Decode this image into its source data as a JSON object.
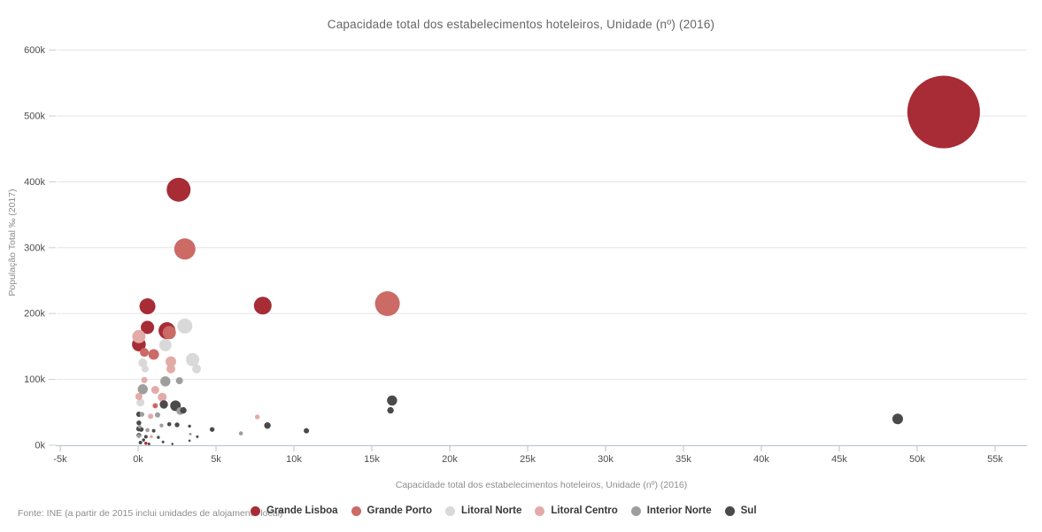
{
  "page": {
    "title": "Capacidade total dos estabelecimentos hoteleiros, Unidade (nº) (2016)"
  },
  "footer": {
    "source_note": "Fonte: INE (a partir de 2015 inclui unidades de alojamento local)"
  },
  "chart_data": {
    "type": "scatter",
    "title": "Capacidade total dos estabelecimentos hoteleiros, Unidade (nº) (2016)",
    "xlabel": "Capacidade total dos estabelecimentos hoteleiros, Unidade (nº) (2016)",
    "ylabel": "População Total ‰ (2017)",
    "xlim": [
      -5000,
      57000
    ],
    "ylim": [
      0,
      600000
    ],
    "grid": "horizontal-lines",
    "legend_position": "bottom",
    "x_ticks": [
      {
        "value": -5000,
        "label": "-5k"
      },
      {
        "value": 0,
        "label": "0k"
      },
      {
        "value": 5000,
        "label": "5k"
      },
      {
        "value": 10000,
        "label": "10k"
      },
      {
        "value": 15000,
        "label": "15k"
      },
      {
        "value": 20000,
        "label": "20k"
      },
      {
        "value": 25000,
        "label": "25k"
      },
      {
        "value": 30000,
        "label": "30k"
      },
      {
        "value": 35000,
        "label": "35k"
      },
      {
        "value": 40000,
        "label": "40k"
      },
      {
        "value": 45000,
        "label": "45k"
      },
      {
        "value": 50000,
        "label": "50k"
      },
      {
        "value": 55000,
        "label": "55k"
      }
    ],
    "y_ticks": [
      {
        "value": 0,
        "label": "0k"
      },
      {
        "value": 100000,
        "label": "100k"
      },
      {
        "value": 200000,
        "label": "200k"
      },
      {
        "value": 300000,
        "label": "300k"
      },
      {
        "value": 400000,
        "label": "400k"
      },
      {
        "value": 500000,
        "label": "500k"
      },
      {
        "value": 600000,
        "label": "600k"
      }
    ],
    "series": [
      {
        "name": "Grande Lisboa",
        "color": "#a72c35",
        "points": [
          {
            "x": 51700,
            "y": 506000,
            "r": 41
          },
          {
            "x": 2600,
            "y": 388000,
            "r": 13.5
          },
          {
            "x": 8000,
            "y": 212000,
            "r": 10
          },
          {
            "x": 600,
            "y": 211000,
            "r": 9
          },
          {
            "x": 600,
            "y": 179000,
            "r": 7.5
          },
          {
            "x": 1850,
            "y": 174000,
            "r": 9.5
          },
          {
            "x": 50,
            "y": 153000,
            "r": 7.8
          },
          {
            "x": 500,
            "y": 3000,
            "r": 1.8
          }
        ]
      },
      {
        "name": "Grande Porto",
        "color": "#cc6a66",
        "points": [
          {
            "x": 3000,
            "y": 298000,
            "r": 12
          },
          {
            "x": 16000,
            "y": 215000,
            "r": 14
          },
          {
            "x": 2000,
            "y": 171000,
            "r": 7.5
          },
          {
            "x": 1000,
            "y": 138000,
            "r": 6
          },
          {
            "x": 400,
            "y": 141000,
            "r": 5
          },
          {
            "x": 1100,
            "y": 60000,
            "r": 3
          }
        ]
      },
      {
        "name": "Litoral Norte",
        "color": "#d9d9d9",
        "points": [
          {
            "x": 3000,
            "y": 181000,
            "r": 8.5
          },
          {
            "x": 1750,
            "y": 152000,
            "r": 7
          },
          {
            "x": 3500,
            "y": 130000,
            "r": 7.5
          },
          {
            "x": 3750,
            "y": 116000,
            "r": 5
          },
          {
            "x": 450,
            "y": 116000,
            "r": 4
          },
          {
            "x": 300,
            "y": 125000,
            "r": 5
          },
          {
            "x": 150,
            "y": 65000,
            "r": 4.5
          }
        ]
      },
      {
        "name": "Litoral Centro",
        "color": "#e3aba8",
        "points": [
          {
            "x": 50,
            "y": 165000,
            "r": 7.5
          },
          {
            "x": 2100,
            "y": 127000,
            "r": 6
          },
          {
            "x": 2100,
            "y": 116000,
            "r": 5
          },
          {
            "x": 400,
            "y": 99000,
            "r": 3.5
          },
          {
            "x": 1100,
            "y": 84000,
            "r": 4.5
          },
          {
            "x": 1550,
            "y": 73000,
            "r": 5
          },
          {
            "x": 50,
            "y": 74000,
            "r": 4
          },
          {
            "x": 7650,
            "y": 43000,
            "r": 2.7
          },
          {
            "x": 800,
            "y": 44000,
            "r": 3
          },
          {
            "x": 850,
            "y": 13000,
            "r": 1.8
          }
        ]
      },
      {
        "name": "Interior Norte",
        "color": "#9e9e9e",
        "points": [
          {
            "x": 300,
            "y": 85000,
            "r": 5.7
          },
          {
            "x": 1750,
            "y": 97000,
            "r": 5.7
          },
          {
            "x": 2650,
            "y": 98000,
            "r": 4
          },
          {
            "x": 2700,
            "y": 52000,
            "r": 4.3
          },
          {
            "x": 1250,
            "y": 46000,
            "r": 3
          },
          {
            "x": 250,
            "y": 47000,
            "r": 2.7
          },
          {
            "x": 600,
            "y": 23000,
            "r": 2.3
          },
          {
            "x": 50,
            "y": 14000,
            "r": 2.3
          },
          {
            "x": 6600,
            "y": 18000,
            "r": 2.3
          },
          {
            "x": 3350,
            "y": 17000,
            "r": 1.5
          },
          {
            "x": 100,
            "y": 28000,
            "r": 2
          },
          {
            "x": 1500,
            "y": 30000,
            "r": 2.2
          }
        ]
      },
      {
        "name": "Sul",
        "color": "#4a4a4a",
        "points": [
          {
            "x": 16300,
            "y": 68000,
            "r": 5.7
          },
          {
            "x": 16200,
            "y": 53000,
            "r": 3.7
          },
          {
            "x": 48750,
            "y": 40000,
            "r": 6
          },
          {
            "x": 2400,
            "y": 60000,
            "r": 6
          },
          {
            "x": 1650,
            "y": 62000,
            "r": 4.7
          },
          {
            "x": 2900,
            "y": 53000,
            "r": 3.7
          },
          {
            "x": 4750,
            "y": 24000,
            "r": 2.7
          },
          {
            "x": 8300,
            "y": 30000,
            "r": 3.7
          },
          {
            "x": 10800,
            "y": 22000,
            "r": 3
          },
          {
            "x": 50,
            "y": 47000,
            "r": 3
          },
          {
            "x": 50,
            "y": 34000,
            "r": 2.7
          },
          {
            "x": 50,
            "y": 25000,
            "r": 3
          },
          {
            "x": 200,
            "y": 24000,
            "r": 2.7
          },
          {
            "x": 1000,
            "y": 22000,
            "r": 2
          },
          {
            "x": 50,
            "y": 15000,
            "r": 2.7
          },
          {
            "x": 500,
            "y": 13000,
            "r": 2
          },
          {
            "x": 1300,
            "y": 12000,
            "r": 1.7
          },
          {
            "x": 150,
            "y": 4000,
            "r": 2
          },
          {
            "x": 3300,
            "y": 29000,
            "r": 1.7
          },
          {
            "x": 3300,
            "y": 7000,
            "r": 1.3
          },
          {
            "x": 2500,
            "y": 31000,
            "r": 2.7
          },
          {
            "x": 2000,
            "y": 32000,
            "r": 2.3
          },
          {
            "x": 3800,
            "y": 13000,
            "r": 1.5
          },
          {
            "x": 700,
            "y": 2000,
            "r": 1.5
          },
          {
            "x": 350,
            "y": 8000,
            "r": 1.8
          },
          {
            "x": 1600,
            "y": 5000,
            "r": 1.5
          },
          {
            "x": 2200,
            "y": 2000,
            "r": 1.3
          }
        ]
      }
    ]
  }
}
